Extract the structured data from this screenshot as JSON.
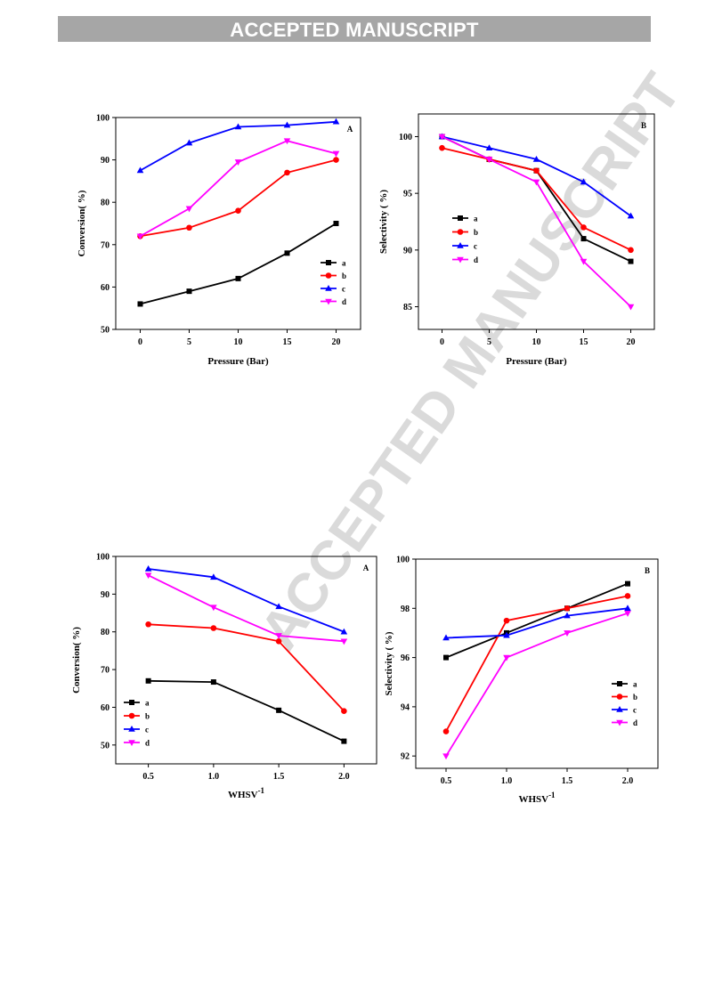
{
  "header": {
    "banner_text": "ACCEPTED MANUSCRIPT"
  },
  "watermark": {
    "text": "ACCEPTED MANUSCRIPT"
  },
  "colors": {
    "a": "#000000",
    "b": "#ff0000",
    "c": "#0000ff",
    "d": "#ff00ff"
  },
  "chart_data": [
    {
      "id": "p-conv",
      "type": "line",
      "panel_label": "A",
      "xlabel": "Pressure (Bar)",
      "ylabel": "Conversion( %)",
      "x": [
        0,
        5,
        10,
        15,
        20
      ],
      "xlim": [
        -2.5,
        22.5
      ],
      "ylim": [
        50,
        100
      ],
      "xticks": [
        "0",
        "5",
        "10",
        "15",
        "20"
      ],
      "yticks": [
        "50",
        "60",
        "70",
        "80",
        "90",
        "100"
      ],
      "legend_position": "bottom-right",
      "series": [
        {
          "name": "a",
          "marker": "square",
          "values": [
            56,
            59,
            62,
            68,
            75
          ]
        },
        {
          "name": "b",
          "marker": "circle",
          "values": [
            72,
            74,
            78,
            87,
            90
          ]
        },
        {
          "name": "c",
          "marker": "triangle-up",
          "values": [
            87.5,
            94,
            97.8,
            98.2,
            99
          ]
        },
        {
          "name": "d",
          "marker": "triangle-down",
          "values": [
            72,
            78.5,
            89.5,
            94.5,
            91.5
          ]
        }
      ]
    },
    {
      "id": "p-sel",
      "type": "line",
      "panel_label": "B",
      "xlabel": "Pressure (Bar)",
      "ylabel": "Selectivity ( %)",
      "x": [
        0,
        5,
        10,
        15,
        20
      ],
      "xlim": [
        -2.5,
        22.5
      ],
      "ylim": [
        83,
        102
      ],
      "xticks": [
        "0",
        "5",
        "10",
        "15",
        "20"
      ],
      "yticks": [
        "85",
        "90",
        "95",
        "100"
      ],
      "legend_position": "middle-left",
      "series": [
        {
          "name": "a",
          "marker": "square",
          "values": [
            100,
            98,
            97,
            91,
            89
          ]
        },
        {
          "name": "b",
          "marker": "circle",
          "values": [
            99,
            98,
            97,
            92,
            90
          ]
        },
        {
          "name": "c",
          "marker": "triangle-up",
          "values": [
            100,
            99,
            98,
            96,
            93
          ]
        },
        {
          "name": "d",
          "marker": "triangle-down",
          "values": [
            100,
            98,
            96,
            89,
            85
          ]
        }
      ]
    },
    {
      "id": "w-conv",
      "type": "line",
      "panel_label": "A",
      "xlabel": "WHSV",
      "xlabel_sup": "-1",
      "ylabel": "Conversion( %)",
      "x": [
        0.5,
        1.0,
        1.5,
        2.0
      ],
      "xlim": [
        0.25,
        2.25
      ],
      "ylim": [
        45,
        100
      ],
      "xticks": [
        "0.5",
        "1.0",
        "1.5",
        "2.0"
      ],
      "yticks": [
        "50",
        "60",
        "70",
        "80",
        "90",
        "100"
      ],
      "legend_position": "bottom-left",
      "series": [
        {
          "name": "a",
          "marker": "square",
          "values": [
            67,
            66.7,
            59.2,
            51
          ]
        },
        {
          "name": "b",
          "marker": "circle",
          "values": [
            82,
            81,
            77.5,
            59
          ]
        },
        {
          "name": "c",
          "marker": "triangle-up",
          "values": [
            96.7,
            94.5,
            86.7,
            80
          ]
        },
        {
          "name": "d",
          "marker": "triangle-down",
          "values": [
            95,
            86.5,
            79,
            77.5
          ]
        }
      ]
    },
    {
      "id": "w-sel",
      "type": "line",
      "panel_label": "B",
      "xlabel": "WHSV",
      "xlabel_sup": "-1",
      "ylabel": "Selectivity ( %)",
      "x": [
        0.5,
        1.0,
        1.5,
        2.0
      ],
      "xlim": [
        0.25,
        2.25
      ],
      "ylim": [
        91.5,
        100
      ],
      "xticks": [
        "0.5",
        "1.0",
        "1.5",
        "2.0"
      ],
      "yticks": [
        "92",
        "94",
        "96",
        "98",
        "100"
      ],
      "legend_position": "bottom-right",
      "series": [
        {
          "name": "a",
          "marker": "square",
          "values": [
            96,
            97,
            98,
            99
          ]
        },
        {
          "name": "b",
          "marker": "circle",
          "values": [
            93,
            97.5,
            98,
            98.5
          ]
        },
        {
          "name": "c",
          "marker": "triangle-up",
          "values": [
            96.8,
            96.9,
            97.7,
            98
          ]
        },
        {
          "name": "d",
          "marker": "triangle-down",
          "values": [
            92,
            96,
            97,
            97.8
          ]
        }
      ]
    }
  ]
}
